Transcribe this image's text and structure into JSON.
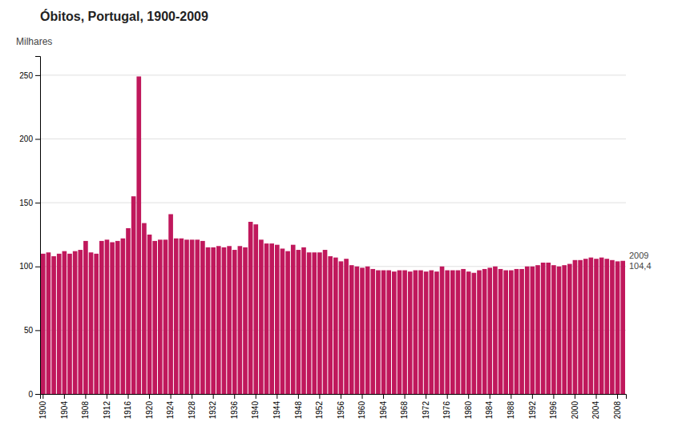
{
  "chart_data": {
    "type": "bar",
    "title": "Óbitos, Portugal, 1900-2009",
    "ylabel": "Milhares",
    "categories": [
      "1900",
      null,
      null,
      null,
      "1904",
      null,
      null,
      null,
      "1908",
      null,
      null,
      null,
      "1912",
      null,
      null,
      null,
      "1916",
      null,
      null,
      null,
      "1920",
      null,
      null,
      null,
      "1924",
      null,
      null,
      null,
      "1928",
      null,
      null,
      null,
      "1932",
      null,
      null,
      null,
      "1936",
      null,
      null,
      null,
      "1940",
      null,
      null,
      null,
      "1944",
      null,
      null,
      null,
      "1948",
      null,
      null,
      null,
      "1952",
      null,
      null,
      null,
      "1956",
      null,
      null,
      null,
      "1960",
      null,
      null,
      null,
      "1964",
      null,
      null,
      null,
      "1968",
      null,
      null,
      null,
      "1972",
      null,
      null,
      null,
      "1976",
      null,
      null,
      null,
      "1980",
      null,
      null,
      null,
      "1984",
      null,
      null,
      null,
      "1988",
      null,
      null,
      null,
      "1992",
      null,
      null,
      null,
      "1996",
      null,
      null,
      null,
      "2000",
      null,
      null,
      null,
      "2004",
      null,
      null,
      null,
      "2008",
      null
    ],
    "values": [
      110,
      111,
      108,
      110,
      112,
      110,
      112,
      113,
      120,
      111,
      110,
      120,
      121,
      119,
      120,
      122,
      130,
      155,
      249,
      134,
      125,
      120,
      121,
      121,
      141,
      122,
      122,
      121,
      121,
      121,
      120,
      115,
      115,
      116,
      115,
      116,
      113,
      116,
      115,
      135,
      133,
      121,
      118,
      118,
      117,
      114,
      112,
      117,
      113,
      115,
      111,
      111,
      111,
      113,
      108,
      107,
      104,
      106,
      101,
      100,
      99,
      100,
      98,
      97,
      97,
      97,
      96,
      97,
      97,
      96,
      97,
      97,
      96,
      97,
      96,
      100,
      97,
      97,
      97,
      98,
      96,
      95,
      97,
      98,
      99,
      100,
      98,
      97,
      97,
      98,
      98,
      100,
      100,
      101,
      103,
      103,
      101,
      100,
      101,
      102,
      105,
      105,
      106,
      107,
      106,
      107,
      106,
      105,
      104,
      104.4
    ],
    "color": "#c0185c",
    "ylim": [
      0,
      265
    ],
    "yticks": [
      0,
      50,
      100,
      150,
      200,
      250
    ],
    "grid": true,
    "annotations": [
      "2009",
      "104,4"
    ]
  }
}
